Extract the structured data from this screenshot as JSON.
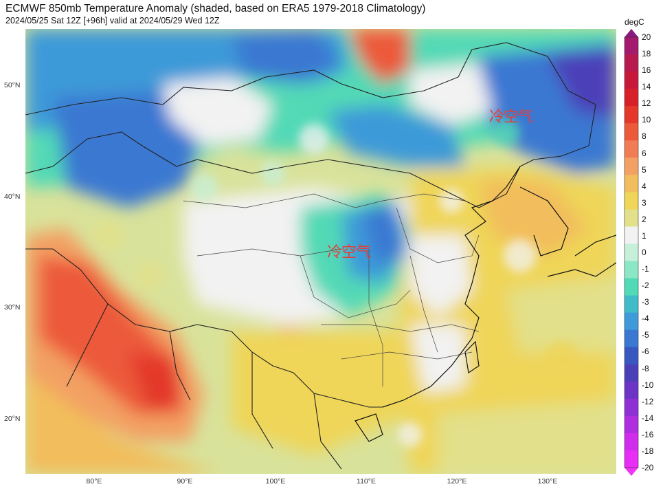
{
  "title": "ECMWF 850mb Temperature Anomaly (shaded, based on ERA5 1979-2018 Climatology)",
  "subtitle": "2024/05/25 Sat 12Z [+96h] valid at 2024/05/29 Wed 12Z",
  "annotations": [
    "冷空气",
    "冷空气"
  ],
  "lat_labels": [
    "50°N",
    "40°N",
    "30°N",
    "20°N"
  ],
  "lon_labels": [
    "80°E",
    "90°E",
    "100°E",
    "110°E",
    "120°E",
    "130°E"
  ],
  "colorbar": {
    "unit": "degC",
    "levels": [
      "20",
      "18",
      "16",
      "14",
      "12",
      "10",
      "8",
      "6",
      "5",
      "4",
      "3",
      "2",
      "1",
      "0",
      "-1",
      "-2",
      "-3",
      "-4",
      "-5",
      "-6",
      "-8",
      "-10",
      "-12",
      "-14",
      "-16",
      "-18",
      "-20"
    ],
    "colors": [
      "#a31a6e",
      "#b81a50",
      "#c8183a",
      "#d8202b",
      "#e3382a",
      "#ec5a3a",
      "#f07d55",
      "#f3a064",
      "#f2bd5c",
      "#efd558",
      "#e2e08a",
      "#f2f2f2",
      "#c6f0da",
      "#8ce7c6",
      "#52d9b6",
      "#3fbcc8",
      "#3e9ad8",
      "#3a78d2",
      "#3858c0",
      "#4b3fb8",
      "#6c35c6",
      "#8e30d4",
      "#b02ee0",
      "#d02cec",
      "#e82ef5"
    ]
  }
}
